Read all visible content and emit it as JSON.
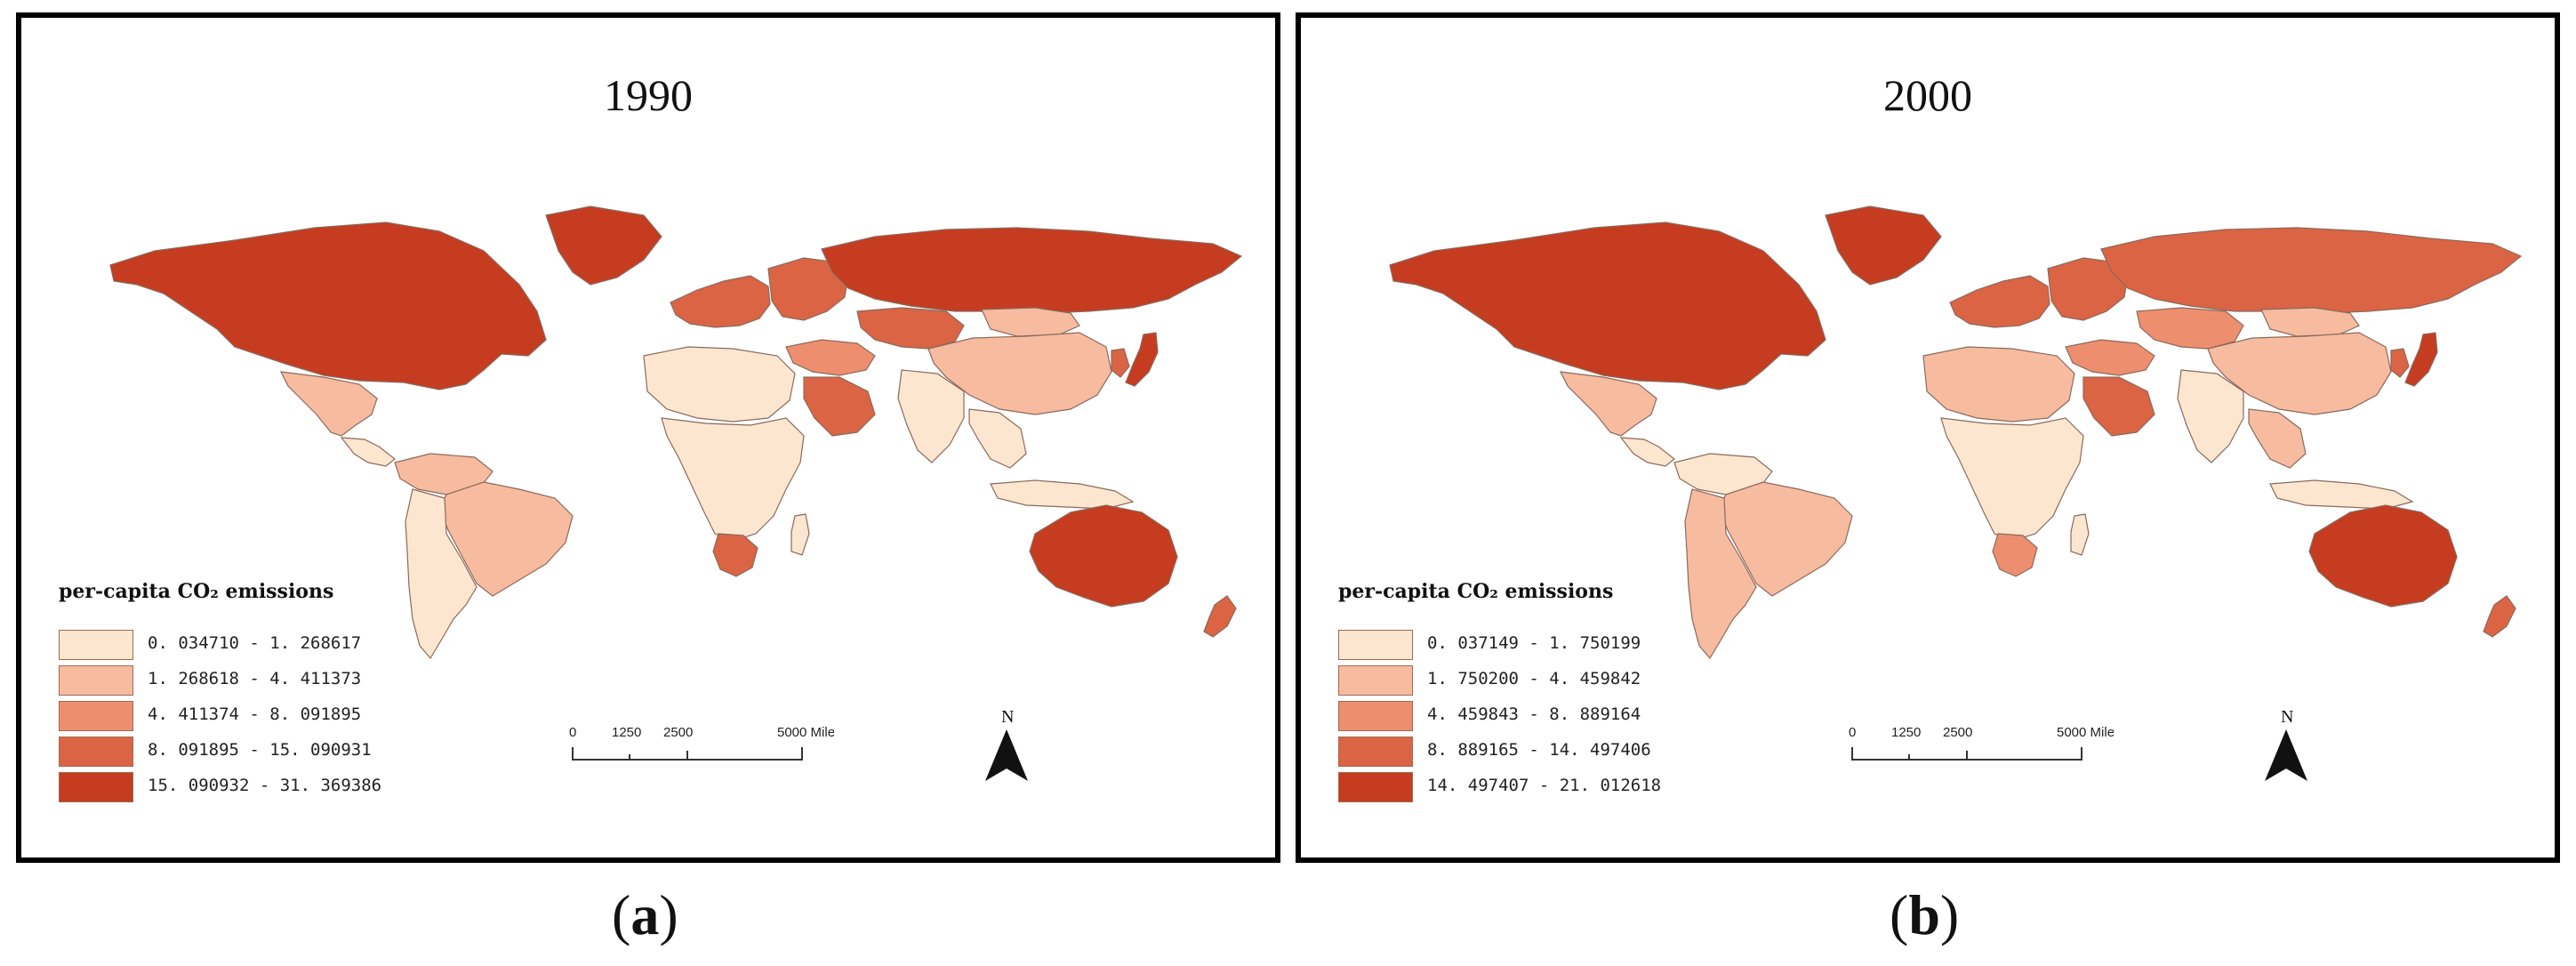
{
  "panels": [
    {
      "id": "a",
      "title": "1990",
      "caption_letter": "a",
      "legend": {
        "title": "per-capita CO₂ emissions",
        "classes": [
          {
            "range": "0. 034710 - 1. 268617",
            "color": "#fde6cf"
          },
          {
            "range": "1. 268618 - 4. 411373",
            "color": "#f7bba0"
          },
          {
            "range": "4. 411374 - 8. 091895",
            "color": "#ed8f6e"
          },
          {
            "range": "8. 091895 - 15. 090931",
            "color": "#db6444"
          },
          {
            "range": "15. 090932 - 31. 369386",
            "color": "#c53c20"
          }
        ]
      },
      "scale": {
        "ticks": [
          "0",
          "1250",
          "2500",
          "5000 Miles"
        ]
      },
      "north_label": "N",
      "region_classes": {
        "north_america": 5,
        "mexico": 2,
        "central_america": 1,
        "south_america_north": 2,
        "brazil": 2,
        "southern_south_america": 1,
        "greenland": 5,
        "europe_west": 4,
        "europe_east": 4,
        "russia": 5,
        "central_asia": 4,
        "china": 2,
        "mongolia": 2,
        "india": 1,
        "southeast_asia": 1,
        "japan": 5,
        "korea": 4,
        "middle_east": 3,
        "arabia": 4,
        "north_africa": 1,
        "africa_central": 1,
        "south_africa": 4,
        "madagascar": 1,
        "indonesia": 1,
        "australia": 5,
        "new_zealand": 4
      }
    },
    {
      "id": "b",
      "title": "2000",
      "caption_letter": "b",
      "legend": {
        "title": "per-capita CO₂ emissions",
        "classes": [
          {
            "range": "0. 037149 - 1. 750199",
            "color": "#fde6cf"
          },
          {
            "range": "1. 750200 - 4. 459842",
            "color": "#f7bba0"
          },
          {
            "range": "4. 459843 - 8. 889164",
            "color": "#ed8f6e"
          },
          {
            "range": "8. 889165 - 14. 497406",
            "color": "#db6444"
          },
          {
            "range": "14. 497407 - 21. 012618",
            "color": "#c53c20"
          }
        ]
      },
      "scale": {
        "ticks": [
          "0",
          "1250",
          "2500",
          "5000 Miles"
        ]
      },
      "north_label": "N",
      "region_classes": {
        "north_america": 5,
        "mexico": 2,
        "central_america": 1,
        "south_america_north": 1,
        "brazil": 2,
        "southern_south_america": 2,
        "greenland": 5,
        "europe_west": 4,
        "europe_east": 4,
        "russia": 4,
        "central_asia": 3,
        "china": 2,
        "mongolia": 2,
        "india": 1,
        "southeast_asia": 2,
        "japan": 5,
        "korea": 4,
        "middle_east": 3,
        "arabia": 4,
        "north_africa": 2,
        "africa_central": 1,
        "south_africa": 3,
        "madagascar": 1,
        "indonesia": 1,
        "australia": 5,
        "new_zealand": 4
      }
    }
  ]
}
